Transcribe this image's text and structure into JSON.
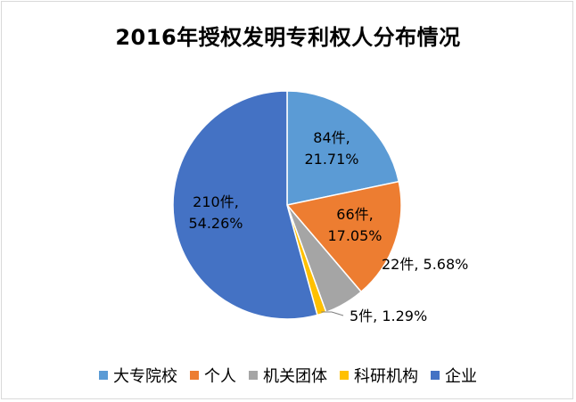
{
  "chart_data": {
    "type": "pie",
    "title": "2016年授权发明专利权人分布情况",
    "categories": [
      "大专院校",
      "个人",
      "机关团体",
      "科研机构",
      "企业"
    ],
    "values": [
      84,
      66,
      22,
      5,
      210
    ],
    "data_labels": [
      "84件,\n21.71%",
      "66件,\n17.05%",
      "22件, 5.68%",
      "5件, 1.29%",
      "210件,\n54.26%"
    ],
    "colors": [
      "#5b9bd5",
      "#ed7d31",
      "#a5a5a5",
      "#ffc000",
      "#4472c4"
    ],
    "legend_position": "bottom"
  }
}
